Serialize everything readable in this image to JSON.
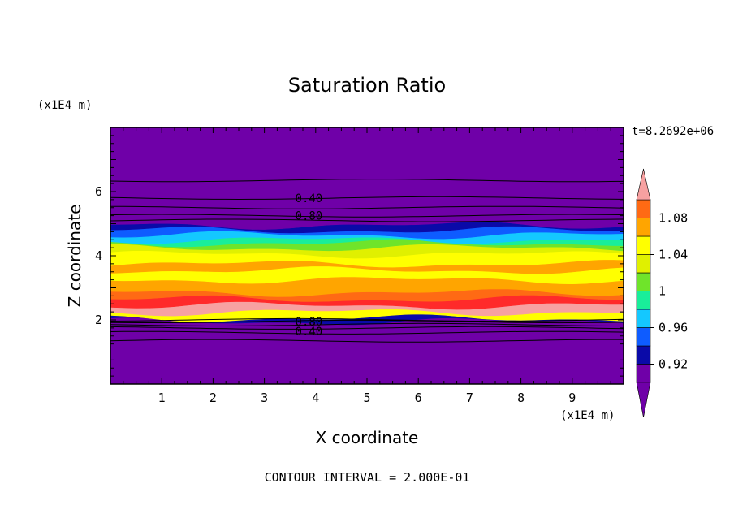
{
  "chart_data": {
    "type": "heatmap",
    "title": "Saturation Ratio",
    "xlabel": "X coordinate",
    "ylabel": "Z coordinate",
    "x_unit": "(x1E4 m)",
    "y_unit": "(x1E4 m)",
    "time_label": "t=8.2692e+06",
    "footer": "CONTOUR INTERVAL = 2.000E-01",
    "xlim": [
      0,
      10
    ],
    "ylim": [
      0,
      8
    ],
    "x_ticks": [
      1,
      2,
      3,
      4,
      5,
      6,
      7,
      8,
      9
    ],
    "y_ticks": [
      2,
      4,
      6
    ],
    "colorbar": {
      "levels": [
        0.9,
        0.92,
        0.94,
        0.96,
        0.98,
        1.0,
        1.02,
        1.04,
        1.06,
        1.08,
        1.1
      ],
      "colors": [
        "#6f00a8",
        "#0a0aa8",
        "#0e5cff",
        "#14c8ff",
        "#19ee9a",
        "#6fe42a",
        "#e0f000",
        "#ffff00",
        "#ffa500",
        "#ff6a14",
        "#ff2a2a"
      ],
      "over_color": "#f7a1a1",
      "under_color": "#6f00a8",
      "labels": [
        "0.92",
        "0.96",
        "1",
        "1.04",
        "1.08"
      ],
      "label_values": [
        0.92,
        0.96,
        1.0,
        1.04,
        1.08
      ]
    },
    "bands": [
      {
        "z": [
          0.0,
          1.95
        ],
        "color": "#6f00a8"
      },
      {
        "z": [
          1.95,
          2.05
        ],
        "color": "#0a0aa8"
      },
      {
        "z": [
          2.05,
          2.25
        ],
        "color": "#ffff00"
      },
      {
        "z": [
          2.25,
          2.45
        ],
        "color": "#f7a1a1"
      },
      {
        "z": [
          2.45,
          2.65
        ],
        "color": "#ff2a2a"
      },
      {
        "z": [
          2.65,
          2.85
        ],
        "color": "#ff6a14"
      },
      {
        "z": [
          2.85,
          3.25
        ],
        "color": "#ffa500"
      },
      {
        "z": [
          3.25,
          3.55
        ],
        "color": "#ffff00"
      },
      {
        "z": [
          3.55,
          3.75
        ],
        "color": "#ffa500"
      },
      {
        "z": [
          3.75,
          4.05
        ],
        "color": "#ffff00"
      },
      {
        "z": [
          4.05,
          4.25
        ],
        "color": "#e0f000"
      },
      {
        "z": [
          4.25,
          4.4
        ],
        "color": "#6fe42a"
      },
      {
        "z": [
          4.4,
          4.5
        ],
        "color": "#19ee9a"
      },
      {
        "z": [
          4.5,
          4.65
        ],
        "color": "#14c8ff"
      },
      {
        "z": [
          4.65,
          4.8
        ],
        "color": "#0e5cff"
      },
      {
        "z": [
          4.8,
          4.95
        ],
        "color": "#0a0aa8"
      },
      {
        "z": [
          4.95,
          8.0
        ],
        "color": "#6f00a8"
      }
    ],
    "contour_lines": {
      "z": [
        1.35,
        1.6,
        1.75,
        1.85,
        1.95,
        2.0,
        5.1,
        5.25,
        5.5,
        5.8,
        6.35
      ],
      "labels": [
        {
          "text": "0.40",
          "x": 3.6,
          "z": 5.8
        },
        {
          "text": "0.80",
          "x": 3.6,
          "z": 5.25
        },
        {
          "text": "0.80",
          "x": 3.6,
          "z": 1.95
        },
        {
          "text": "0.40",
          "x": 3.6,
          "z": 1.65
        }
      ]
    }
  }
}
